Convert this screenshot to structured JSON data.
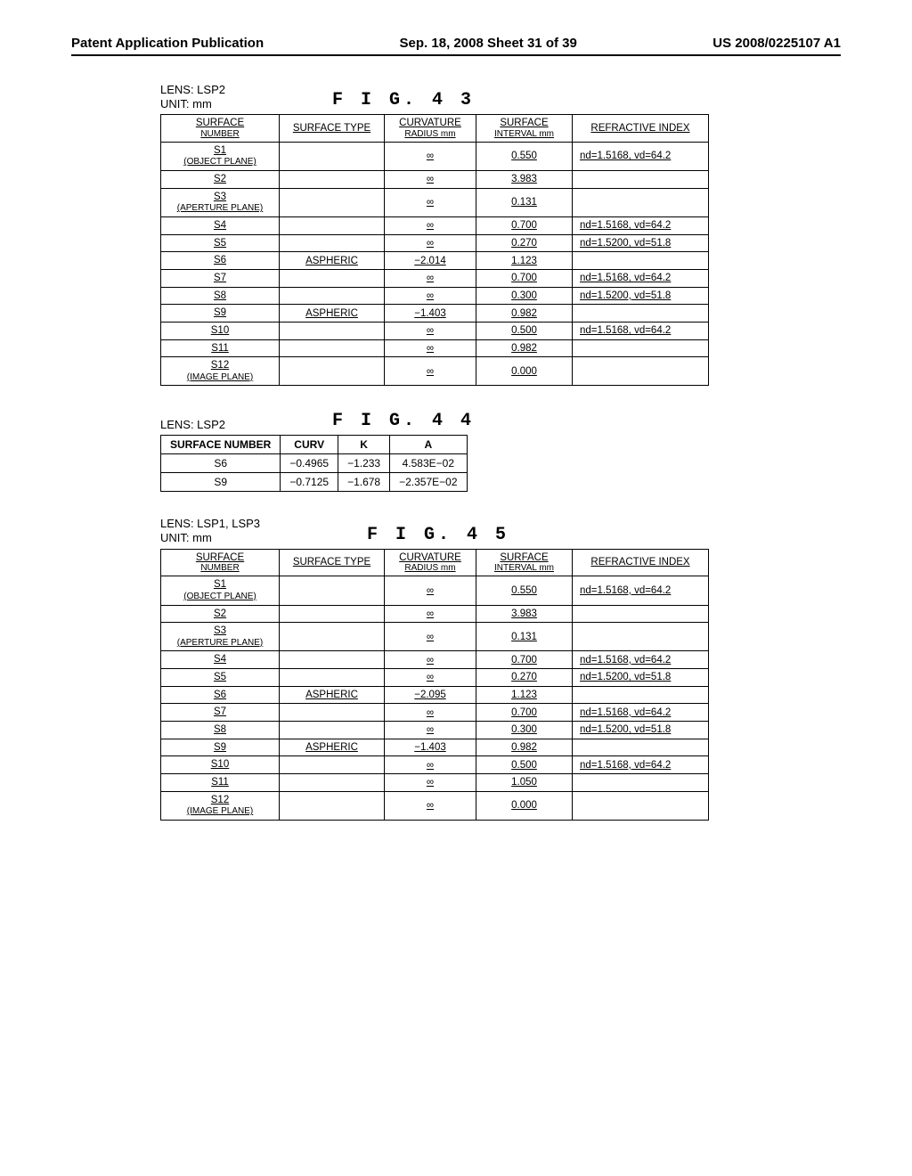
{
  "header": {
    "left": "Patent Application Publication",
    "center": "Sep. 18, 2008  Sheet 31 of 39",
    "right": "US 2008/0225107 A1"
  },
  "fig43": {
    "lens_label": "LENS: LSP2",
    "unit_label": "UNIT: mm",
    "fig_label": "F I G.  4 3",
    "columns": {
      "c1a": "SURFACE",
      "c1b": "NUMBER",
      "c2": "SURFACE TYPE",
      "c3a": "CURVATURE",
      "c3b": "RADIUS mm",
      "c4a": "SURFACE",
      "c4b": "INTERVAL mm",
      "c5": "REFRACTIVE INDEX"
    },
    "rows": [
      {
        "sn": "S1",
        "sn2": "(OBJECT PLANE)",
        "st": "",
        "cr": "∞",
        "si": "0.550",
        "ri": "nd=1.5168, vd=64.2"
      },
      {
        "sn": "S2",
        "sn2": "",
        "st": "",
        "cr": "∞",
        "si": "3.983",
        "ri": ""
      },
      {
        "sn": "S3",
        "sn2": "(APERTURE PLANE)",
        "st": "",
        "cr": "∞",
        "si": "0.131",
        "ri": ""
      },
      {
        "sn": "S4",
        "sn2": "",
        "st": "",
        "cr": "∞",
        "si": "0.700",
        "ri": "nd=1.5168, vd=64.2"
      },
      {
        "sn": "S5",
        "sn2": "",
        "st": "",
        "cr": "∞",
        "si": "0.270",
        "ri": "nd=1.5200, vd=51.8"
      },
      {
        "sn": "S6",
        "sn2": "",
        "st": "ASPHERIC",
        "cr": "−2.014",
        "si": "1.123",
        "ri": ""
      },
      {
        "sn": "S7",
        "sn2": "",
        "st": "",
        "cr": "∞",
        "si": "0.700",
        "ri": "nd=1.5168, vd=64.2"
      },
      {
        "sn": "S8",
        "sn2": "",
        "st": "",
        "cr": "∞",
        "si": "0.300",
        "ri": "nd=1.5200, vd=51.8"
      },
      {
        "sn": "S9",
        "sn2": "",
        "st": "ASPHERIC",
        "cr": "−1.403",
        "si": "0.982",
        "ri": ""
      },
      {
        "sn": "S10",
        "sn2": "",
        "st": "",
        "cr": "∞",
        "si": "0.500",
        "ri": "nd=1.5168, vd=64.2"
      },
      {
        "sn": "S11",
        "sn2": "",
        "st": "",
        "cr": "∞",
        "si": "0.982",
        "ri": ""
      },
      {
        "sn": "S12",
        "sn2": "(IMAGE PLANE)",
        "st": "",
        "cr": "∞",
        "si": "0.000",
        "ri": ""
      }
    ]
  },
  "fig44": {
    "lens_label": "LENS: LSP2",
    "fig_label": "F I G.  4 4",
    "columns": {
      "c1": "SURFACE NUMBER",
      "c2": "CURV",
      "c3": "K",
      "c4": "A"
    },
    "rows": [
      {
        "sn": "S6",
        "curv": "−0.4965",
        "k": "−1.233",
        "a": "4.583E−02"
      },
      {
        "sn": "S9",
        "curv": "−0.7125",
        "k": "−1.678",
        "a": "−2.357E−02"
      }
    ]
  },
  "fig45": {
    "lens_label": "LENS: LSP1, LSP3",
    "unit_label": "UNIT: mm",
    "fig_label": "F I G.  4 5",
    "columns": {
      "c1a": "SURFACE",
      "c1b": "NUMBER",
      "c2": "SURFACE TYPE",
      "c3a": "CURVATURE",
      "c3b": "RADIUS mm",
      "c4a": "SURFACE",
      "c4b": "INTERVAL mm",
      "c5": "REFRACTIVE INDEX"
    },
    "rows": [
      {
        "sn": "S1",
        "sn2": "(OBJECT PLANE)",
        "st": "",
        "cr": "∞",
        "si": "0.550",
        "ri": "nd=1.5168, vd=64.2"
      },
      {
        "sn": "S2",
        "sn2": "",
        "st": "",
        "cr": "∞",
        "si": "3.983",
        "ri": ""
      },
      {
        "sn": "S3",
        "sn2": "(APERTURE PLANE)",
        "st": "",
        "cr": "∞",
        "si": "0.131",
        "ri": ""
      },
      {
        "sn": "S4",
        "sn2": "",
        "st": "",
        "cr": "∞",
        "si": "0.700",
        "ri": "nd=1.5168, vd=64.2"
      },
      {
        "sn": "S5",
        "sn2": "",
        "st": "",
        "cr": "∞",
        "si": "0.270",
        "ri": "nd=1.5200, vd=51.8"
      },
      {
        "sn": "S6",
        "sn2": "",
        "st": "ASPHERIC",
        "cr": "−2.095",
        "si": "1.123",
        "ri": ""
      },
      {
        "sn": "S7",
        "sn2": "",
        "st": "",
        "cr": "∞",
        "si": "0.700",
        "ri": "nd=1.5168, vd=64.2"
      },
      {
        "sn": "S8",
        "sn2": "",
        "st": "",
        "cr": "∞",
        "si": "0.300",
        "ri": "nd=1.5200, vd=51.8"
      },
      {
        "sn": "S9",
        "sn2": "",
        "st": "ASPHERIC",
        "cr": "−1.403",
        "si": "0.982",
        "ri": ""
      },
      {
        "sn": "S10",
        "sn2": "",
        "st": "",
        "cr": "∞",
        "si": "0.500",
        "ri": "nd=1.5168, vd=64.2"
      },
      {
        "sn": "S11",
        "sn2": "",
        "st": "",
        "cr": "∞",
        "si": "1.050",
        "ri": ""
      },
      {
        "sn": "S12",
        "sn2": "(IMAGE PLANE)",
        "st": "",
        "cr": "∞",
        "si": "0.000",
        "ri": ""
      }
    ]
  }
}
